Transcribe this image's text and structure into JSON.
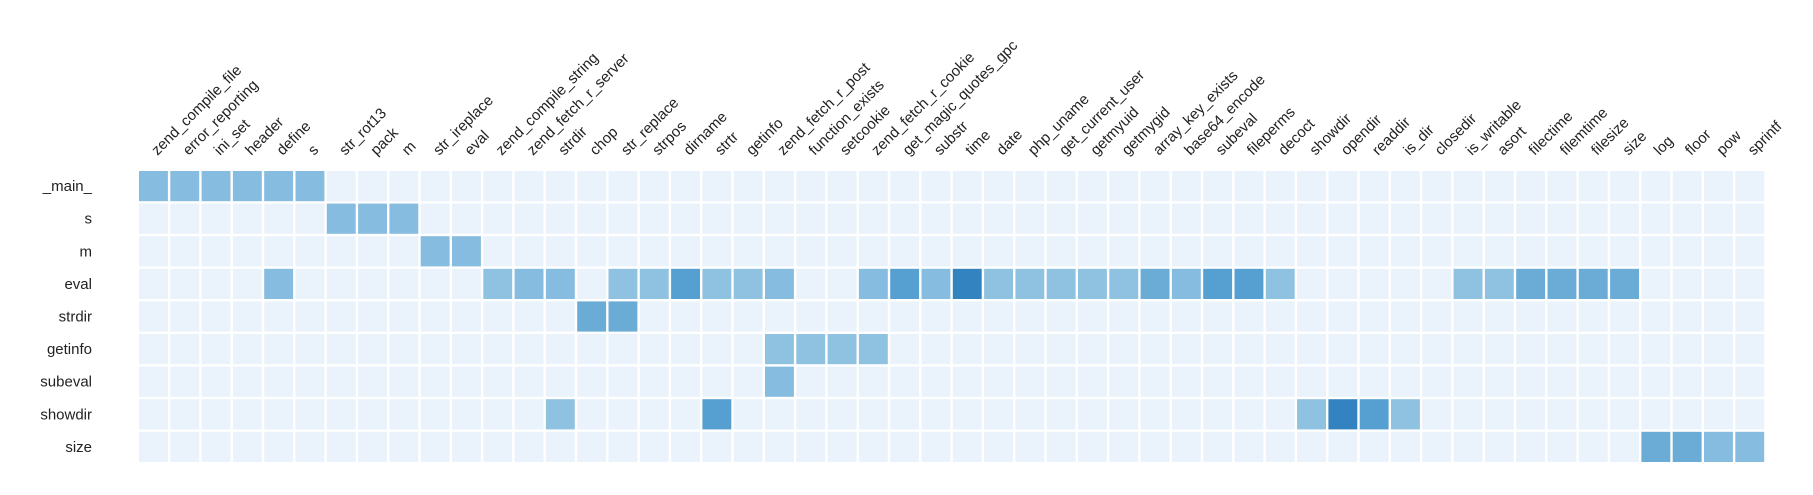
{
  "chart_data": {
    "type": "heatmap",
    "columns": [
      "zend_compile_file",
      "error_reporting",
      "ini_set",
      "header",
      "define",
      "s",
      "str_rot13",
      "pack",
      "m",
      "str_ireplace",
      "eval",
      "zend_compile_string",
      "zend_fetch_r_server",
      "strdir",
      "chop",
      "str_replace",
      "strpos",
      "dirname",
      "strtr",
      "getinfo",
      "zend_fetch_r_post",
      "function_exists",
      "setcookie",
      "zend_fetch_r_cookie",
      "get_magic_quotes_gpc",
      "substr",
      "time",
      "date",
      "php_uname",
      "get_current_user",
      "getmyuid",
      "getmygid",
      "array_key_exists",
      "base64_encode",
      "subeval",
      "fileperms",
      "decoct",
      "showdir",
      "opendir",
      "readdir",
      "is_dir",
      "closedir",
      "is_writable",
      "asort",
      "filectime",
      "filemtime",
      "filesize",
      "size",
      "log",
      "floor",
      "pow",
      "sprintf"
    ],
    "rows": [
      "_main_",
      "s",
      "m",
      "eval",
      "strdir",
      "getinfo",
      "subeval",
      "showdir",
      "size"
    ],
    "cells": [
      {
        "row": "_main_",
        "col": "zend_compile_file",
        "value": 2
      },
      {
        "row": "_main_",
        "col": "error_reporting",
        "value": 2
      },
      {
        "row": "_main_",
        "col": "ini_set",
        "value": 2
      },
      {
        "row": "_main_",
        "col": "header",
        "value": 2
      },
      {
        "row": "_main_",
        "col": "define",
        "value": 2
      },
      {
        "row": "_main_",
        "col": "s",
        "value": 2
      },
      {
        "row": "s",
        "col": "str_rot13",
        "value": 2
      },
      {
        "row": "s",
        "col": "pack",
        "value": 2
      },
      {
        "row": "s",
        "col": "m",
        "value": 2
      },
      {
        "row": "m",
        "col": "str_ireplace",
        "value": 2
      },
      {
        "row": "m",
        "col": "eval",
        "value": 2
      },
      {
        "row": "eval",
        "col": "define",
        "value": 2
      },
      {
        "row": "eval",
        "col": "zend_compile_string",
        "value": 1
      },
      {
        "row": "eval",
        "col": "zend_fetch_r_server",
        "value": 2
      },
      {
        "row": "eval",
        "col": "strdir",
        "value": 2
      },
      {
        "row": "eval",
        "col": "str_replace",
        "value": 1
      },
      {
        "row": "eval",
        "col": "strpos",
        "value": 1
      },
      {
        "row": "eval",
        "col": "dirname",
        "value": 4
      },
      {
        "row": "eval",
        "col": "strtr",
        "value": 1
      },
      {
        "row": "eval",
        "col": "getinfo",
        "value": 1
      },
      {
        "row": "eval",
        "col": "zend_fetch_r_post",
        "value": 2
      },
      {
        "row": "eval",
        "col": "zend_fetch_r_cookie",
        "value": 2
      },
      {
        "row": "eval",
        "col": "get_magic_quotes_gpc",
        "value": 4
      },
      {
        "row": "eval",
        "col": "substr",
        "value": 2
      },
      {
        "row": "eval",
        "col": "time",
        "value": 5
      },
      {
        "row": "eval",
        "col": "date",
        "value": 1
      },
      {
        "row": "eval",
        "col": "php_uname",
        "value": 1
      },
      {
        "row": "eval",
        "col": "get_current_user",
        "value": 1
      },
      {
        "row": "eval",
        "col": "getmyuid",
        "value": 1
      },
      {
        "row": "eval",
        "col": "getmygid",
        "value": 1
      },
      {
        "row": "eval",
        "col": "array_key_exists",
        "value": 3
      },
      {
        "row": "eval",
        "col": "base64_encode",
        "value": 2
      },
      {
        "row": "eval",
        "col": "subeval",
        "value": 4
      },
      {
        "row": "eval",
        "col": "fileperms",
        "value": 4
      },
      {
        "row": "eval",
        "col": "decoct",
        "value": 1
      },
      {
        "row": "eval",
        "col": "is_writable",
        "value": 1
      },
      {
        "row": "eval",
        "col": "asort",
        "value": 1
      },
      {
        "row": "eval",
        "col": "filectime",
        "value": 3
      },
      {
        "row": "eval",
        "col": "filemtime",
        "value": 3
      },
      {
        "row": "eval",
        "col": "filesize",
        "value": 3
      },
      {
        "row": "eval",
        "col": "size",
        "value": 3
      },
      {
        "row": "strdir",
        "col": "chop",
        "value": 3
      },
      {
        "row": "strdir",
        "col": "str_replace",
        "value": 3
      },
      {
        "row": "getinfo",
        "col": "zend_fetch_r_post",
        "value": 1
      },
      {
        "row": "getinfo",
        "col": "function_exists",
        "value": 1
      },
      {
        "row": "getinfo",
        "col": "setcookie",
        "value": 1
      },
      {
        "row": "getinfo",
        "col": "zend_fetch_r_cookie",
        "value": 1
      },
      {
        "row": "subeval",
        "col": "zend_fetch_r_post",
        "value": 2
      },
      {
        "row": "showdir",
        "col": "strdir",
        "value": 1
      },
      {
        "row": "showdir",
        "col": "strtr",
        "value": 4
      },
      {
        "row": "showdir",
        "col": "showdir",
        "value": 1
      },
      {
        "row": "showdir",
        "col": "opendir",
        "value": 5
      },
      {
        "row": "showdir",
        "col": "readdir",
        "value": 4
      },
      {
        "row": "showdir",
        "col": "is_dir",
        "value": 1
      },
      {
        "row": "size",
        "col": "log",
        "value": 3
      },
      {
        "row": "size",
        "col": "floor",
        "value": 3
      },
      {
        "row": "size",
        "col": "pow",
        "value": 2
      },
      {
        "row": "size",
        "col": "sprintf",
        "value": 2
      }
    ],
    "colors": {
      "empty": "#eaf3fb",
      "scale": [
        "#eaf3fb",
        "#8fc2e0",
        "#86bcdf",
        "#6aacd6",
        "#559fd1",
        "#3383c0"
      ],
      "grid": "#ffffff",
      "label": "#222222"
    }
  }
}
